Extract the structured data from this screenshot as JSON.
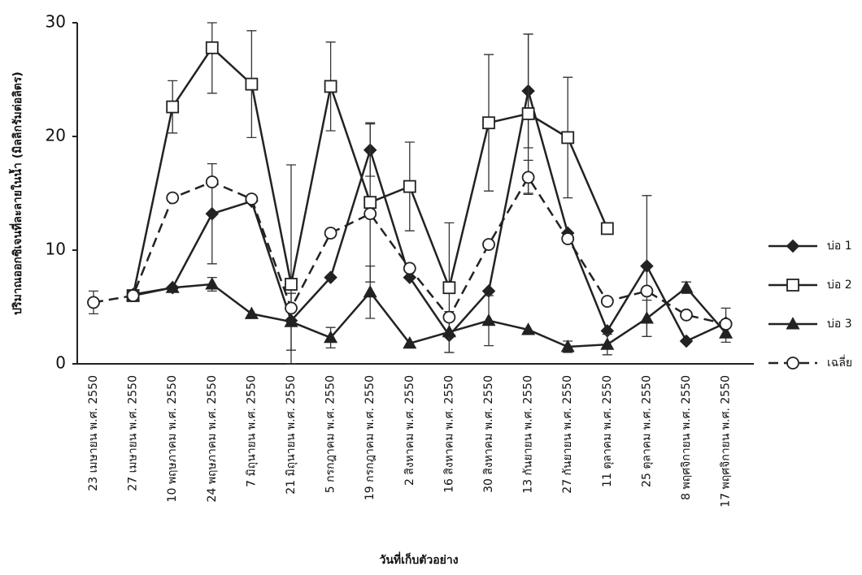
{
  "chart_data": {
    "type": "line",
    "y_label": "ปริมาณออกซิเจนที่ละลายในน้ำ (มิลลิกรัมต่อลิตร)",
    "x_label": "วันที่เก็บตัวอย่าง",
    "categories": [
      "23 เมษายน พ.ศ. 2550",
      "27 เมษายน พ.ศ. 2550",
      "10 พฤษภาคม พ.ศ. 2550",
      "24 พฤษภาคม พ.ศ. 2550",
      "7 มิถุนายน พ.ศ. 2550",
      "21 มิถุนายน พ.ศ. 2550",
      "5 กรกฎาคม พ.ศ. 2550",
      "19 กรกฎาคม พ.ศ. 2550",
      "2 สิงหาคม พ.ศ. 2550",
      "16 สิงหาคม พ.ศ. 2550",
      "30 สิงหาคม พ.ศ. 2550",
      "13 กันยายน พ.ศ. 2550",
      "27 กันยายน พ.ศ. 2550",
      "11 ตุลาคม พ.ศ. 2550",
      "25 ตุลาคม พ.ศ. 2550",
      "8 พฤศจิกายน พ.ศ. 2550",
      "17 พฤศจิกายน พ.ศ. 2550"
    ],
    "series": [
      {
        "name": "บ่อ 1",
        "color": "#222222",
        "marker": "diamond",
        "dashed": false,
        "values": [
          null,
          6.1,
          6.7,
          13.2,
          14.3,
          3.8,
          7.6,
          18.8,
          7.6,
          2.5,
          6.4,
          24.0,
          11.5,
          2.9,
          8.6,
          2.0,
          3.6
        ],
        "errors": [
          null,
          null,
          null,
          4.4,
          null,
          null,
          null,
          2.3,
          null,
          null,
          null,
          5.0,
          null,
          null,
          6.2,
          null,
          1.3
        ]
      },
      {
        "name": "บ่อ 2",
        "color": "#222222",
        "marker": "square",
        "dashed": false,
        "values": [
          null,
          6.0,
          22.6,
          27.8,
          24.6,
          7.0,
          24.4,
          14.2,
          15.6,
          6.7,
          21.2,
          22.0,
          19.9,
          11.9,
          null,
          null,
          null
        ],
        "errors": [
          null,
          null,
          2.3,
          4.0,
          4.7,
          10.5,
          3.9,
          7.0,
          3.9,
          5.7,
          6.0,
          7.0,
          5.3,
          null,
          null,
          null,
          null
        ]
      },
      {
        "name": "บ่อ 3",
        "color": "#222222",
        "marker": "triangle",
        "dashed": false,
        "values": [
          null,
          6.0,
          6.7,
          7.0,
          4.4,
          3.7,
          2.3,
          6.3,
          1.8,
          2.8,
          3.8,
          3.0,
          1.5,
          1.7,
          4.0,
          6.7,
          2.7
        ],
        "errors": [
          null,
          null,
          null,
          0.6,
          null,
          2.5,
          0.9,
          2.3,
          null,
          1.8,
          2.2,
          null,
          0.5,
          0.9,
          1.6,
          0.5,
          0.8
        ]
      },
      {
        "name": "เฉลี่ย",
        "color": "#222222",
        "marker": "circle",
        "dashed": true,
        "values": [
          5.4,
          6.0,
          14.6,
          16.0,
          14.5,
          4.9,
          11.5,
          13.2,
          8.4,
          4.1,
          10.5,
          16.4,
          11.0,
          5.5,
          6.4,
          4.3,
          3.5
        ],
        "errors": [
          1.0,
          0.4,
          null,
          null,
          null,
          null,
          null,
          null,
          null,
          null,
          null,
          1.5,
          null,
          null,
          null,
          null,
          null
        ]
      }
    ],
    "ylim": [
      0,
      30
    ],
    "yticks": [
      0,
      10,
      20,
      30
    ],
    "grid": false,
    "legend": "right"
  }
}
